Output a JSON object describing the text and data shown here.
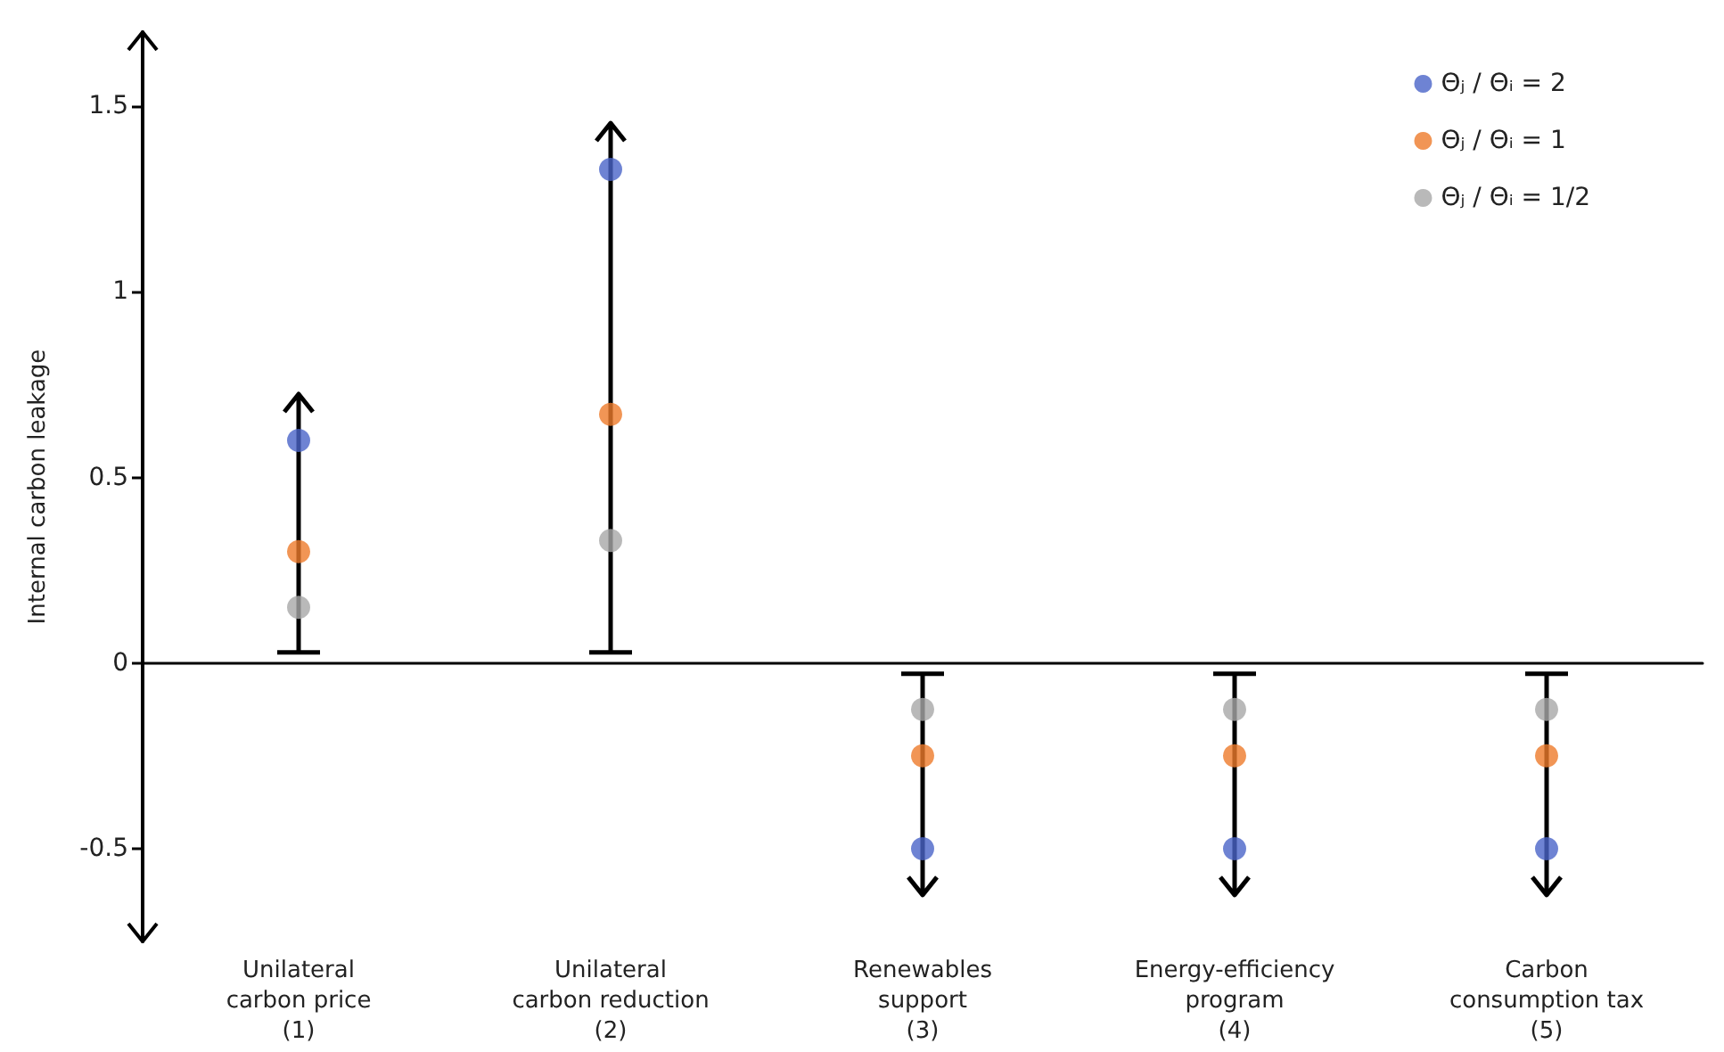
{
  "chart_data": {
    "type": "scatter",
    "ylabel": "Internal carbon leakage",
    "categories": [
      "Unilateral\ncarbon price\n(1)",
      "Unilateral\ncarbon reduction\n(2)",
      "Renewables\nsupport\n(3)",
      "Energy-efficiency\nprogram\n(4)",
      "Carbon\nconsumption tax\n(5)"
    ],
    "series": [
      {
        "name": "Θⱼ / Θᵢ = 2",
        "color": "#4a64c8",
        "values": [
          0.6,
          1.33,
          -0.5,
          -0.5,
          -0.5
        ]
      },
      {
        "name": "Θⱼ / Θᵢ = 1",
        "color": "#ee7a2a",
        "values": [
          0.3,
          0.67,
          -0.25,
          -0.25,
          -0.25
        ]
      },
      {
        "name": "Θⱼ / Θᵢ = 1/2",
        "color": "#a8a8a8",
        "values": [
          0.15,
          0.33,
          -0.125,
          -0.125,
          -0.125
        ]
      }
    ],
    "ylim": [
      -0.75,
      1.7
    ],
    "yticks": [
      -0.5,
      0,
      0.5,
      1,
      1.5
    ],
    "legend": "top right",
    "marker": "circle"
  }
}
